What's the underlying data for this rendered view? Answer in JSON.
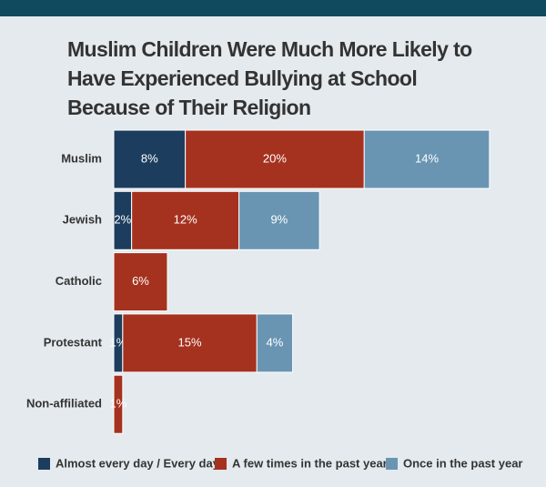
{
  "chart_data": {
    "type": "stacked-bar-horizontal",
    "title": "Muslim Children Were Much More Likely to Have Experienced Bullying at School Because of Their Religion",
    "categories": [
      "Muslim",
      "Jewish",
      "Catholic",
      "Protestant",
      "Non-affiliated"
    ],
    "series": [
      {
        "name": "Almost every day / Every day",
        "color": "#1c3d5e",
        "values": [
          8,
          2,
          null,
          1,
          null
        ],
        "value_labels": [
          "8%",
          "2%",
          null,
          "1%",
          null
        ]
      },
      {
        "name": "A few times in the past year",
        "color": "#a5321f",
        "values": [
          20,
          12,
          6,
          15,
          1
        ],
        "value_labels": [
          "20%",
          "12%",
          "6%",
          "15%",
          "1%"
        ]
      },
      {
        "name": "Once in the past year",
        "color": "#6995b3",
        "values": [
          14,
          9,
          null,
          4,
          null
        ],
        "value_labels": [
          "14%",
          "9%",
          null,
          "4%",
          null
        ]
      }
    ],
    "legend": "bottom"
  }
}
